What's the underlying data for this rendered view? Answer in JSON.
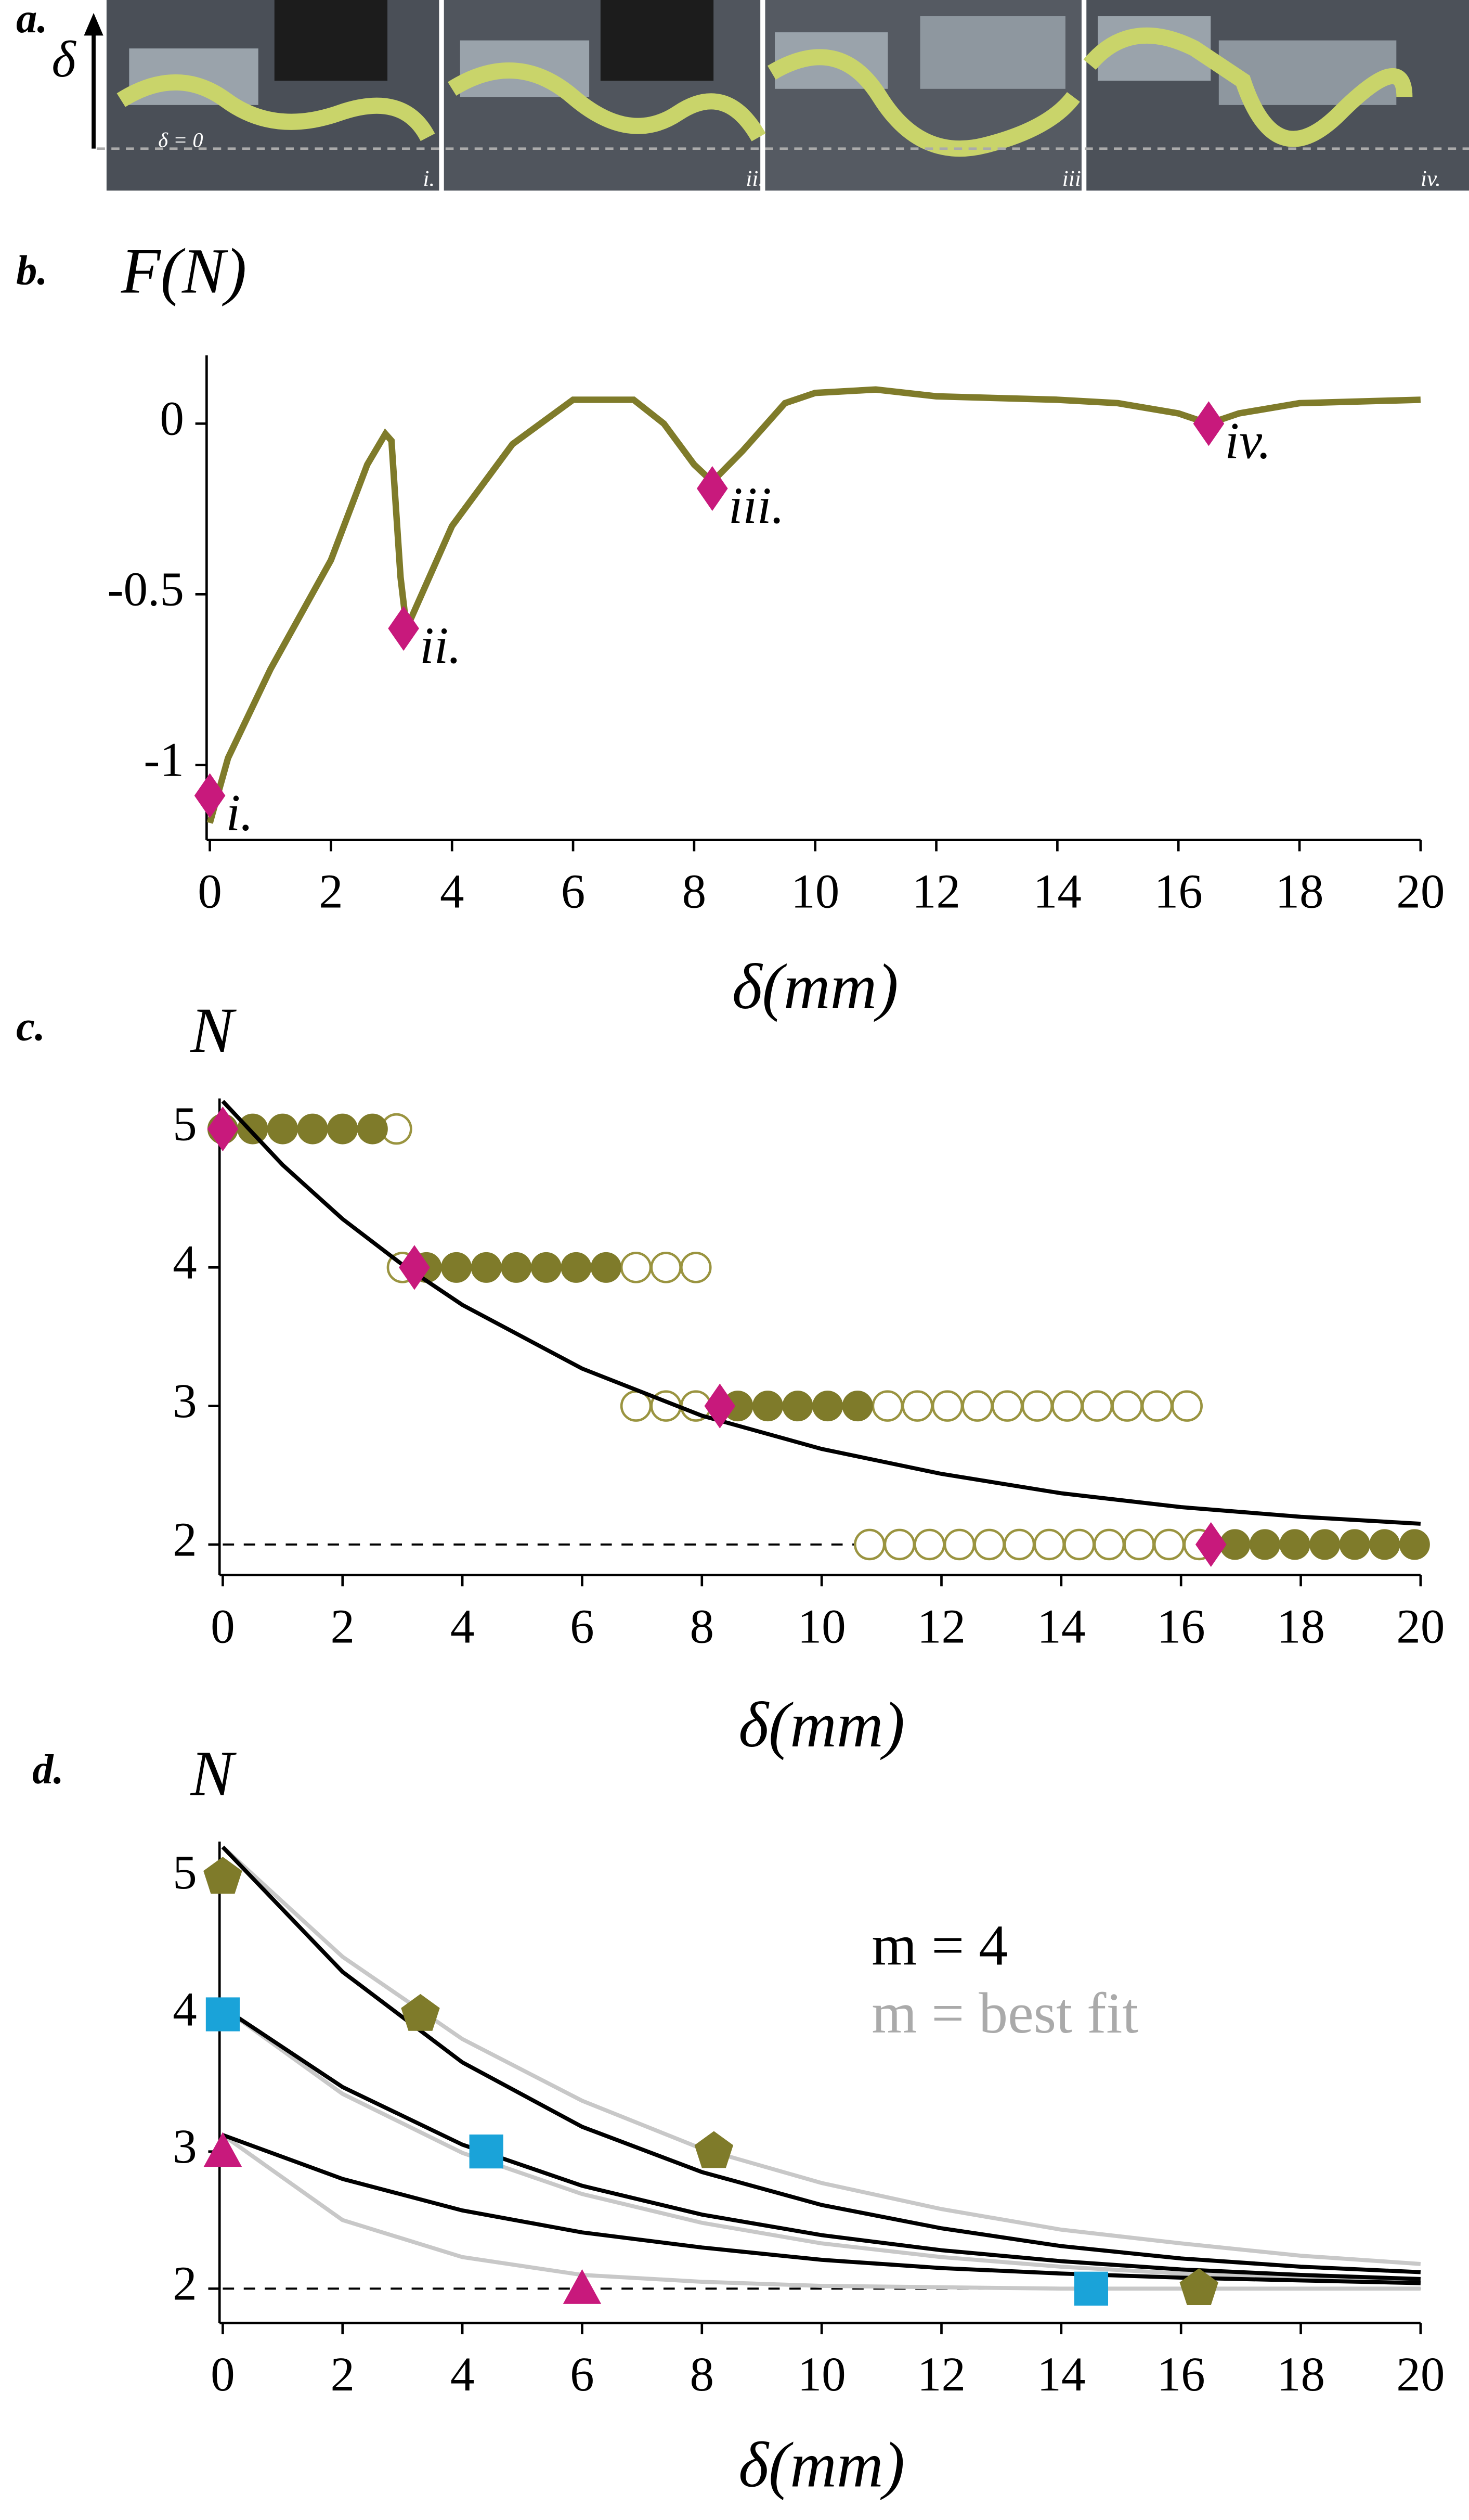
{
  "panel_a": {
    "label": "a.",
    "delta": "δ",
    "baseline": "δ = 0",
    "frames": [
      "i.",
      "ii.",
      "iii.",
      "iv."
    ]
  },
  "chart_data": [
    {
      "panel": "b.",
      "type": "line",
      "ylabel": "F(N)",
      "xlabel": "δ(mm)",
      "xlim": [
        0,
        20
      ],
      "xticks": [
        0,
        2,
        4,
        6,
        8,
        10,
        12,
        14,
        16,
        18,
        20
      ],
      "ylim": [
        -1.22,
        0.2
      ],
      "yticks": [
        0,
        -0.5,
        -1
      ],
      "series": [
        {
          "kind": "line",
          "color": "#7f7b2a",
          "x": [
            0,
            0.3,
            1,
            2,
            2.6,
            2.9,
            3.0,
            3.15,
            3.25,
            3.5,
            4,
            5,
            6,
            7,
            7.5,
            8,
            8.3,
            8.8,
            9.5,
            10,
            11,
            12,
            14,
            15,
            16,
            16.5,
            17,
            18,
            20
          ],
          "values": [
            -1.17,
            -0.98,
            -0.72,
            -0.4,
            -0.12,
            -0.03,
            -0.05,
            -0.45,
            -0.6,
            -0.5,
            -0.3,
            -0.06,
            0.07,
            0.07,
            0.0,
            -0.12,
            -0.17,
            -0.08,
            0.06,
            0.09,
            0.1,
            0.08,
            0.07,
            0.06,
            0.03,
            0.0,
            0.03,
            0.06,
            0.07
          ]
        },
        {
          "kind": "scatter",
          "marker": "diamond",
          "filled": true,
          "color": "#c8197c",
          "x": [
            0,
            3.2,
            8.3,
            16.5
          ],
          "values": [
            -1.09,
            -0.6,
            -0.19,
            0
          ],
          "point_labels": [
            "i.",
            "ii.",
            "iii.",
            "iv."
          ]
        }
      ]
    },
    {
      "panel": "c.",
      "type": "scatter",
      "ylabel": "N",
      "xlabel": "δ(mm)",
      "xlim": [
        0,
        20
      ],
      "xticks": [
        0,
        2,
        4,
        6,
        8,
        10,
        12,
        14,
        16,
        18,
        20
      ],
      "ylim": [
        1.78,
        5.22
      ],
      "yticks": [
        2,
        3,
        4,
        5
      ],
      "hline": 2,
      "series": [
        {
          "kind": "scatter",
          "marker": "circle",
          "filled": false,
          "color": "#9a9440",
          "x": [
            2.9,
            3.0,
            6.9,
            7.4,
            7.9,
            6.9,
            7.4,
            7.9,
            11.1,
            11.6,
            12.1,
            12.6,
            13.1,
            13.6,
            14.1,
            14.6,
            15.1,
            15.6,
            16.1,
            10.8,
            11.3,
            11.8,
            12.3,
            12.8,
            13.3,
            13.8,
            14.3,
            14.8,
            15.3,
            15.8,
            16.3
          ],
          "values": [
            5,
            4,
            4,
            4,
            4,
            3,
            3,
            3,
            3,
            3,
            3,
            3,
            3,
            3,
            3,
            3,
            3,
            3,
            3,
            2,
            2,
            2,
            2,
            2,
            2,
            2,
            2,
            2,
            2,
            2,
            2
          ]
        },
        {
          "kind": "scatter",
          "marker": "circle",
          "filled": true,
          "color": "#7f7b2a",
          "x": [
            0,
            0.5,
            1,
            1.5,
            2,
            2.5,
            3.4,
            3.9,
            4.4,
            4.9,
            5.4,
            5.9,
            6.4,
            8.6,
            9.1,
            9.6,
            10.1,
            10.6,
            16.9,
            17.4,
            17.9,
            18.4,
            18.9,
            19.4,
            19.9
          ],
          "values": [
            5,
            5,
            5,
            5,
            5,
            5,
            4,
            4,
            4,
            4,
            4,
            4,
            4,
            3,
            3,
            3,
            3,
            3,
            2,
            2,
            2,
            2,
            2,
            2,
            2
          ]
        },
        {
          "kind": "line",
          "color": "#000000",
          "x": [
            0,
            1,
            2,
            3,
            4,
            6,
            8,
            10,
            12,
            14,
            16,
            18,
            20
          ],
          "values": [
            5.2,
            4.74,
            4.35,
            4.02,
            3.73,
            3.27,
            2.93,
            2.69,
            2.51,
            2.37,
            2.27,
            2.2,
            2.15
          ]
        },
        {
          "kind": "scatter",
          "marker": "diamond",
          "filled": true,
          "color": "#c8197c",
          "x": [
            0,
            3.2,
            8.3,
            16.5
          ],
          "values": [
            5,
            4,
            3,
            2
          ]
        }
      ]
    },
    {
      "panel": "d.",
      "type": "scatter",
      "ylabel": "N",
      "xlabel": "δ(mm)",
      "xlim": [
        0,
        20
      ],
      "xticks": [
        0,
        2,
        4,
        6,
        8,
        10,
        12,
        14,
        16,
        18,
        20
      ],
      "ylim": [
        1.75,
        5.26
      ],
      "yticks": [
        2,
        3,
        4,
        5
      ],
      "hline": 2,
      "series": [
        {
          "kind": "line",
          "color": "#c8c8c8",
          "x": [
            0,
            2,
            4,
            6,
            8,
            10,
            12,
            14,
            16,
            18,
            20
          ],
          "values": [
            5.22,
            4.42,
            3.82,
            3.37,
            3.02,
            2.77,
            2.58,
            2.43,
            2.33,
            2.24,
            2.18
          ]
        },
        {
          "kind": "line",
          "color": "#c8c8c8",
          "x": [
            0,
            2,
            4,
            6,
            8,
            10,
            12,
            14,
            16,
            18,
            20
          ],
          "values": [
            4.05,
            3.42,
            2.99,
            2.69,
            2.48,
            2.33,
            2.23,
            2.16,
            2.11,
            2.08,
            2.05
          ]
        },
        {
          "kind": "line",
          "color": "#c8c8c8",
          "x": [
            0,
            2,
            4,
            6,
            8,
            10,
            12,
            14,
            16,
            18,
            20
          ],
          "values": [
            3.12,
            2.5,
            2.23,
            2.1,
            2.05,
            2.02,
            2.01,
            2.0,
            2.0,
            2.0,
            2.0
          ]
        },
        {
          "kind": "line",
          "color": "#000000",
          "x": [
            0,
            2,
            4,
            6,
            8,
            10,
            12,
            14,
            16,
            18,
            20
          ],
          "values": [
            5.22,
            4.31,
            3.65,
            3.18,
            2.85,
            2.61,
            2.44,
            2.31,
            2.22,
            2.16,
            2.12
          ]
        },
        {
          "kind": "line",
          "color": "#000000",
          "x": [
            0,
            2,
            4,
            6,
            8,
            10,
            12,
            14,
            16,
            18,
            20
          ],
          "values": [
            4.05,
            3.47,
            3.05,
            2.75,
            2.54,
            2.39,
            2.28,
            2.2,
            2.14,
            2.1,
            2.07
          ]
        },
        {
          "kind": "line",
          "color": "#000000",
          "x": [
            0,
            2,
            4,
            6,
            8,
            10,
            12,
            14,
            16,
            18,
            20
          ],
          "values": [
            3.12,
            2.8,
            2.57,
            2.41,
            2.3,
            2.21,
            2.15,
            2.11,
            2.08,
            2.06,
            2.04
          ]
        },
        {
          "kind": "scatter",
          "marker": "pentagon",
          "filled": true,
          "color": "#7f7b2a",
          "x": [
            0,
            3.3,
            8.2,
            16.3
          ],
          "values": [
            5,
            4,
            3,
            2
          ]
        },
        {
          "kind": "scatter",
          "marker": "square",
          "filled": true,
          "color": "#1aa3d9",
          "x": [
            0,
            4.4,
            14.5
          ],
          "values": [
            4,
            3,
            2
          ]
        },
        {
          "kind": "scatter",
          "marker": "triangle",
          "filled": true,
          "color": "#c8197c",
          "x": [
            0,
            6
          ],
          "values": [
            3,
            2
          ]
        }
      ],
      "annotations": [
        {
          "text": "m = 4",
          "color": "#000000"
        },
        {
          "text": "m = best fit",
          "color": "#aaaaaa"
        }
      ]
    }
  ]
}
